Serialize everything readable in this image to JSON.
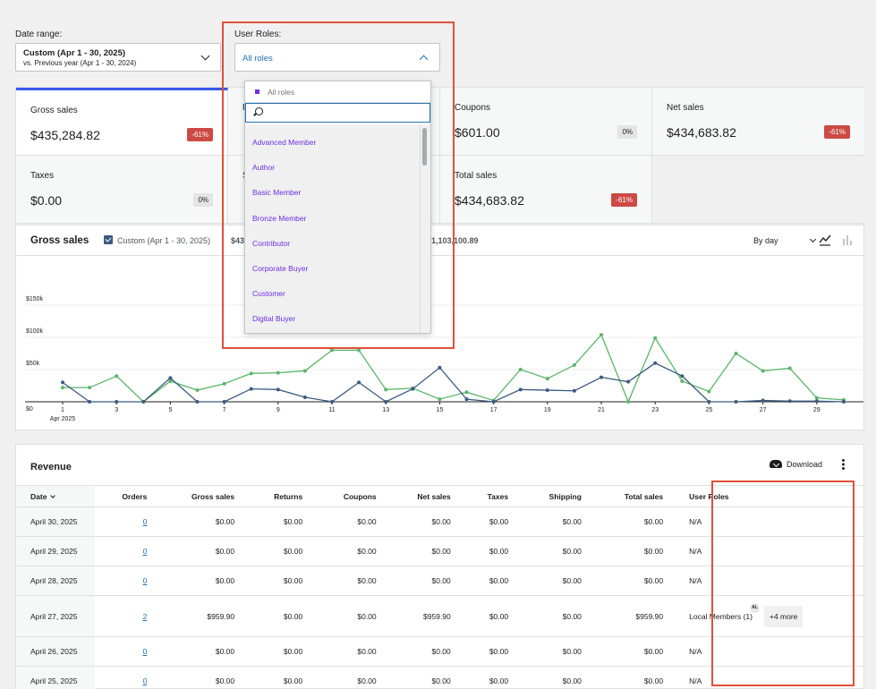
{
  "filters": {
    "date_range": {
      "label": "Date range:",
      "line1": "Custom (Apr 1 - 30, 2025)",
      "line2": "vs. Previous year (Apr 1 - 30, 2024)"
    },
    "user_roles": {
      "label": "User Roles:",
      "value": "All roles"
    }
  },
  "tiles": [
    {
      "label": "Gross sales",
      "value": "$435,284.82",
      "delta": "-61%",
      "tone": "neg",
      "active": true
    },
    {
      "label": "R",
      "value": "",
      "delta": "",
      "tone": "none"
    },
    {
      "label": "Coupons",
      "value": "$601.00",
      "delta": "0%",
      "tone": "zero"
    },
    {
      "label": "Net sales",
      "value": "$434,683.82",
      "delta": "-61%",
      "tone": "neg"
    },
    {
      "label": "Taxes",
      "value": "$0.00",
      "delta": "0%",
      "tone": "zero"
    },
    {
      "label": "S",
      "value": "",
      "delta": "",
      "tone": "none"
    },
    {
      "label": "Total sales",
      "value": "$434,683.82",
      "delta": "-61%",
      "tone": "neg"
    }
  ],
  "dropdown": {
    "selected": "All roles",
    "search_placeholder": "",
    "options": [
      "Advanced Member",
      "Author",
      "Basic Member",
      "Bronze Member",
      "Contributor",
      "Corporate Buyer",
      "Customer",
      "Digital Buyer"
    ]
  },
  "chart": {
    "title": "Gross sales",
    "legend_current": "Custom (Apr 1 - 30, 2025)",
    "legend_current_total": "$43",
    "legend_previous_total": "1,103,100.89",
    "interval": "By day",
    "icons": [
      "line-chart-icon",
      "bar-chart-icon"
    ],
    "colors": {
      "current": "#3c5a80",
      "previous": "#5ab569"
    }
  },
  "chart_data": {
    "type": "line",
    "title": "Gross sales",
    "x": [
      1,
      2,
      3,
      4,
      5,
      6,
      7,
      8,
      9,
      10,
      11,
      12,
      13,
      14,
      15,
      16,
      17,
      18,
      19,
      20,
      21,
      22,
      23,
      24,
      25,
      26,
      27,
      28,
      29,
      30
    ],
    "xlabel": "",
    "ylabel": "",
    "x_tick_labels": [
      "1",
      "3",
      "5",
      "7",
      "9",
      "11",
      "13",
      "15",
      "17",
      "19",
      "21",
      "23",
      "25",
      "27",
      "29"
    ],
    "x_tick_sublabel": "Apr 2025",
    "y_tick_labels": [
      "$0",
      "$50k",
      "$100k",
      "$150k"
    ],
    "ylim": [
      0,
      150000
    ],
    "series": [
      {
        "name": "Custom (Apr 1 - 30, 2025)",
        "color": "#3c5a80",
        "values": [
          30000,
          0,
          0,
          0,
          37000,
          0,
          0,
          20000,
          19000,
          7000,
          0,
          30000,
          0,
          20000,
          53000,
          4000,
          0,
          19000,
          18000,
          17000,
          38000,
          31000,
          60000,
          40000,
          0,
          0,
          2000,
          1000,
          1000,
          0
        ]
      },
      {
        "name": "",
        "color": "#5ab569",
        "values": [
          22000,
          22000,
          40000,
          0,
          32000,
          18000,
          28000,
          44000,
          45000,
          48000,
          80000,
          80000,
          19000,
          21000,
          4000,
          15000,
          2000,
          50000,
          36000,
          57000,
          104000,
          0,
          99000,
          32000,
          16000,
          75000,
          48000,
          52000,
          6000,
          3000
        ]
      }
    ]
  },
  "revenue": {
    "title": "Revenue",
    "download_label": "Download",
    "columns": [
      "Date",
      "Orders",
      "Gross sales",
      "Returns",
      "Coupons",
      "Net sales",
      "Taxes",
      "Shipping",
      "Total sales",
      "User Roles"
    ],
    "rows": [
      {
        "date": "April 30, 2025",
        "orders": "0",
        "gross": "$0.00",
        "returns": "$0.00",
        "coupons": "$0.00",
        "net": "$0.00",
        "taxes": "$0.00",
        "shipping": "$0.00",
        "total": "$0.00",
        "roles": "N/A"
      },
      {
        "date": "April 29, 2025",
        "orders": "0",
        "gross": "$0.00",
        "returns": "$0.00",
        "coupons": "$0.00",
        "net": "$0.00",
        "taxes": "$0.00",
        "shipping": "$0.00",
        "total": "$0.00",
        "roles": "N/A"
      },
      {
        "date": "April 28, 2025",
        "orders": "0",
        "gross": "$0.00",
        "returns": "$0.00",
        "coupons": "$0.00",
        "net": "$0.00",
        "taxes": "$0.00",
        "shipping": "$0.00",
        "total": "$0.00",
        "roles": "N/A"
      },
      {
        "date": "April 27, 2025",
        "orders": "2",
        "gross": "$959.90",
        "returns": "$0.00",
        "coupons": "$0.00",
        "net": "$959.90",
        "taxes": "$0.00",
        "shipping": "$0.00",
        "total": "$959.90",
        "roles": "Local Members (1)",
        "avatar": "AL",
        "more": "+4 more"
      },
      {
        "date": "April 26, 2025",
        "orders": "0",
        "gross": "$0.00",
        "returns": "$0.00",
        "coupons": "$0.00",
        "net": "$0.00",
        "taxes": "$0.00",
        "shipping": "$0.00",
        "total": "$0.00",
        "roles": "N/A"
      },
      {
        "date": "April 25, 2025",
        "orders": "0",
        "gross": "$0.00",
        "returns": "$0.00",
        "coupons": "$0.00",
        "net": "$0.00",
        "taxes": "$0.00",
        "shipping": "$0.00",
        "total": "$0.00",
        "roles": "N/A"
      }
    ]
  }
}
